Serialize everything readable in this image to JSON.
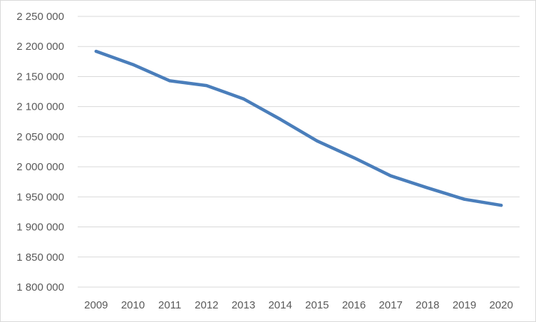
{
  "chart_data": {
    "type": "line",
    "title": "",
    "xlabel": "",
    "ylabel": "",
    "categories": [
      "2009",
      "2010",
      "2011",
      "2012",
      "2013",
      "2014",
      "2015",
      "2016",
      "2017",
      "2018",
      "2019",
      "2020"
    ],
    "series": [
      {
        "values": [
          2192000,
          2170000,
          2143000,
          2135000,
          2113000,
          2079000,
          2043000,
          2015000,
          1985000,
          1965000,
          1946000,
          1936000
        ],
        "color": "#4a7ebb"
      }
    ],
    "ylim": [
      1800000,
      2250000
    ],
    "y_ticks": [
      1800000,
      1850000,
      1900000,
      1950000,
      2000000,
      2050000,
      2100000,
      2150000,
      2200000,
      2250000
    ],
    "y_tick_labels": [
      "1 800 000",
      "1 850 000",
      "1 900 000",
      "1 950 000",
      "2 000 000",
      "2 050 000",
      "2 100 000",
      "2 150 000",
      "2 200 000",
      "2 250 000"
    ],
    "grid": "horizontal",
    "legend": "none"
  },
  "colors": {
    "grid": "#d9d9d9",
    "text": "#595959",
    "series": "#4a7ebb"
  }
}
